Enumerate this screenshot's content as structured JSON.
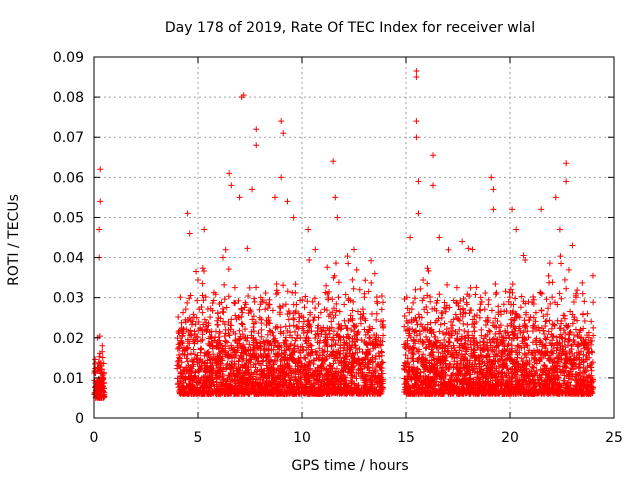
{
  "chart_data": {
    "type": "scatter",
    "title": "Day 178 of 2019, Rate Of TEC Index for receiver wlal",
    "xlabel": "GPS time / hours",
    "ylabel": "ROTI / TECUs",
    "xlim": [
      0,
      25
    ],
    "ylim": [
      0,
      0.09
    ],
    "xticks": [
      0,
      5,
      10,
      15,
      20,
      25
    ],
    "yticks": [
      0,
      0.01,
      0.02,
      0.03,
      0.04,
      0.05,
      0.06,
      0.07,
      0.08,
      0.09
    ],
    "xtick_labels": [
      "0",
      "5",
      "10",
      "15",
      "20",
      "25"
    ],
    "ytick_labels": [
      "0",
      "0.01",
      "0.02",
      "0.03",
      "0.04",
      "0.05",
      "0.06",
      "0.07",
      "0.08",
      "0.09"
    ],
    "grid": true,
    "marker": "+",
    "color": "#ff0000",
    "series": [
      {
        "name": "ROTI",
        "segments": [
          {
            "x_start": 0.0,
            "x_end": 0.5,
            "baseline": 0.009,
            "spread": 0.006
          },
          {
            "x_start": 4.0,
            "x_end": 13.9,
            "baseline": 0.01,
            "spread": 0.012
          },
          {
            "x_start": 14.9,
            "x_end": 24.0,
            "baseline": 0.01,
            "spread": 0.012
          }
        ],
        "peaks": [
          {
            "x": 0.3,
            "y": 0.062
          },
          {
            "x": 0.3,
            "y": 0.054
          },
          {
            "x": 0.25,
            "y": 0.047
          },
          {
            "x": 0.25,
            "y": 0.04
          },
          {
            "x": 0.4,
            "y": 0.018
          },
          {
            "x": 4.5,
            "y": 0.051
          },
          {
            "x": 4.6,
            "y": 0.046
          },
          {
            "x": 5.3,
            "y": 0.047
          },
          {
            "x": 6.2,
            "y": 0.04
          },
          {
            "x": 6.5,
            "y": 0.061
          },
          {
            "x": 6.6,
            "y": 0.058
          },
          {
            "x": 7.1,
            "y": 0.08
          },
          {
            "x": 7.2,
            "y": 0.0805
          },
          {
            "x": 7.0,
            "y": 0.055
          },
          {
            "x": 7.6,
            "y": 0.057
          },
          {
            "x": 7.8,
            "y": 0.072
          },
          {
            "x": 7.8,
            "y": 0.068
          },
          {
            "x": 8.7,
            "y": 0.055
          },
          {
            "x": 9.0,
            "y": 0.074
          },
          {
            "x": 9.1,
            "y": 0.071
          },
          {
            "x": 9.0,
            "y": 0.06
          },
          {
            "x": 9.3,
            "y": 0.054
          },
          {
            "x": 9.6,
            "y": 0.05
          },
          {
            "x": 10.3,
            "y": 0.047
          },
          {
            "x": 11.5,
            "y": 0.064
          },
          {
            "x": 11.6,
            "y": 0.055
          },
          {
            "x": 11.7,
            "y": 0.05
          },
          {
            "x": 12.5,
            "y": 0.042
          },
          {
            "x": 13.5,
            "y": 0.036
          },
          {
            "x": 15.2,
            "y": 0.045
          },
          {
            "x": 15.5,
            "y": 0.0865
          },
          {
            "x": 15.5,
            "y": 0.085
          },
          {
            "x": 15.5,
            "y": 0.074
          },
          {
            "x": 15.5,
            "y": 0.07
          },
          {
            "x": 15.6,
            "y": 0.059
          },
          {
            "x": 15.6,
            "y": 0.051
          },
          {
            "x": 16.3,
            "y": 0.0655
          },
          {
            "x": 16.3,
            "y": 0.058
          },
          {
            "x": 16.6,
            "y": 0.045
          },
          {
            "x": 17.7,
            "y": 0.044
          },
          {
            "x": 18.2,
            "y": 0.042
          },
          {
            "x": 19.1,
            "y": 0.06
          },
          {
            "x": 19.2,
            "y": 0.057
          },
          {
            "x": 19.2,
            "y": 0.052
          },
          {
            "x": 20.1,
            "y": 0.052
          },
          {
            "x": 20.3,
            "y": 0.047
          },
          {
            "x": 21.5,
            "y": 0.052
          },
          {
            "x": 22.2,
            "y": 0.055
          },
          {
            "x": 22.4,
            "y": 0.047
          },
          {
            "x": 22.7,
            "y": 0.0635
          },
          {
            "x": 22.7,
            "y": 0.059
          },
          {
            "x": 23.0,
            "y": 0.043
          },
          {
            "x": 23.5,
            "y": 0.031
          }
        ]
      }
    ]
  }
}
